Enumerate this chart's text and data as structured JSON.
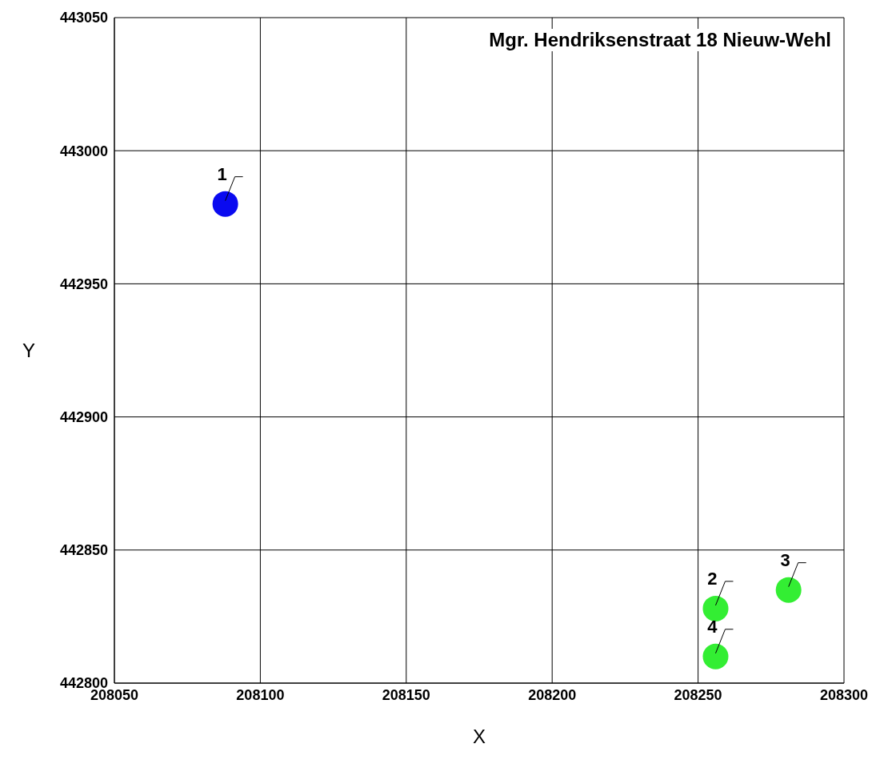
{
  "chart_data": {
    "type": "scatter",
    "title": "Mgr. Hendriksenstraat 18 Nieuw-Wehl",
    "xlabel": "X",
    "ylabel": "Y",
    "series": [
      {
        "color": "#0a0af0",
        "x": [
          208088
        ],
        "values": [
          442980
        ]
      },
      {
        "color": "#33ee33",
        "x": [
          208256,
          208281,
          208256
        ],
        "values": [
          442828,
          442835,
          442810
        ]
      }
    ],
    "annotations": [
      {
        "text": "1",
        "x": 208088,
        "y": 442980
      },
      {
        "text": "2",
        "x": 208256,
        "y": 442828
      },
      {
        "text": "3",
        "x": 208281,
        "y": 442835
      },
      {
        "text": "4",
        "x": 208256,
        "y": 442810
      }
    ],
    "xlim": [
      208050,
      208300
    ],
    "xticks": [
      208050,
      208100,
      208150,
      208200,
      208250,
      208300
    ],
    "ylim": [
      442800,
      443050
    ],
    "yticks": [
      442800,
      442850,
      442900,
      442950,
      443000,
      443050
    ],
    "grid": true,
    "legend": false,
    "marker": "circle"
  }
}
